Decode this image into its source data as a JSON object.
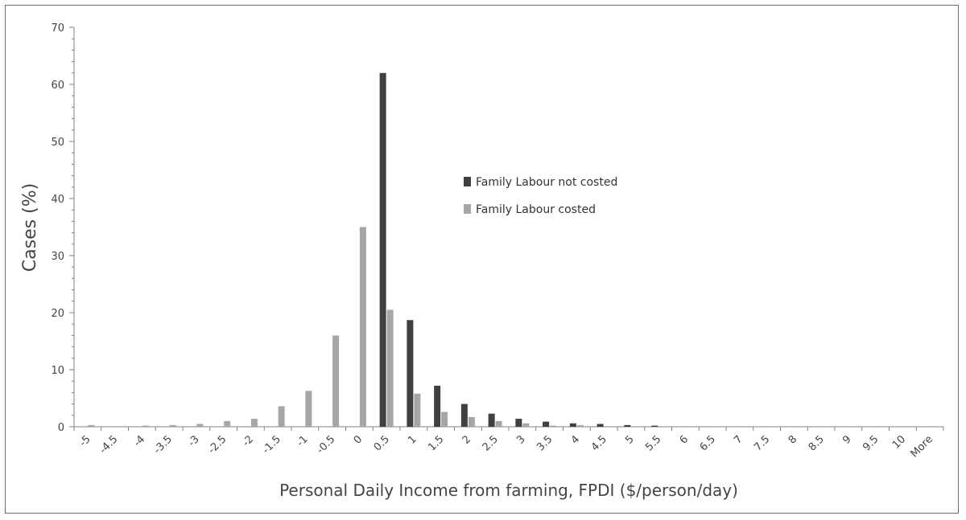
{
  "chart_data": {
    "type": "bar",
    "title": "",
    "xlabel": "Personal Daily Income from farming, FPDI ($/person/day)",
    "ylabel": "Cases (%)",
    "ylim": [
      0,
      70
    ],
    "yticks": [
      0,
      10,
      20,
      30,
      40,
      50,
      60,
      70
    ],
    "grid": false,
    "legend_position": "center",
    "categories": [
      "-5",
      "-4.5",
      "-4",
      "-3.5",
      "-3",
      "-2.5",
      "-2",
      "-1.5",
      "-1",
      "-0.5",
      "0",
      "0.5",
      "1",
      "1.5",
      "2",
      "2.5",
      "3",
      "3.5",
      "4",
      "4.5",
      "5",
      "5.5",
      "6",
      "6.5",
      "7",
      "7.5",
      "8",
      "8.5",
      "9",
      "9.5",
      "10",
      "More"
    ],
    "series": [
      {
        "name": "Family Labour not costed",
        "color": "#404040",
        "values": [
          0,
          0,
          0,
          0,
          0,
          0,
          0,
          0,
          0,
          0,
          0,
          62,
          18.7,
          7.2,
          4,
          2.3,
          1.4,
          0.9,
          0.6,
          0.5,
          0.3,
          0.2,
          0,
          0,
          0,
          0,
          0,
          0,
          0,
          0,
          0,
          0
        ]
      },
      {
        "name": "Family Labour costed",
        "color": "#a6a6a6",
        "values": [
          0.3,
          0,
          0.2,
          0.3,
          0.5,
          1,
          1.4,
          3.6,
          6.3,
          16,
          35,
          20.5,
          5.8,
          2.6,
          1.7,
          1,
          0.6,
          0.2,
          0.3,
          0.1,
          0,
          0,
          0,
          0,
          0,
          0,
          0,
          0,
          0,
          0,
          0,
          0
        ]
      }
    ]
  }
}
